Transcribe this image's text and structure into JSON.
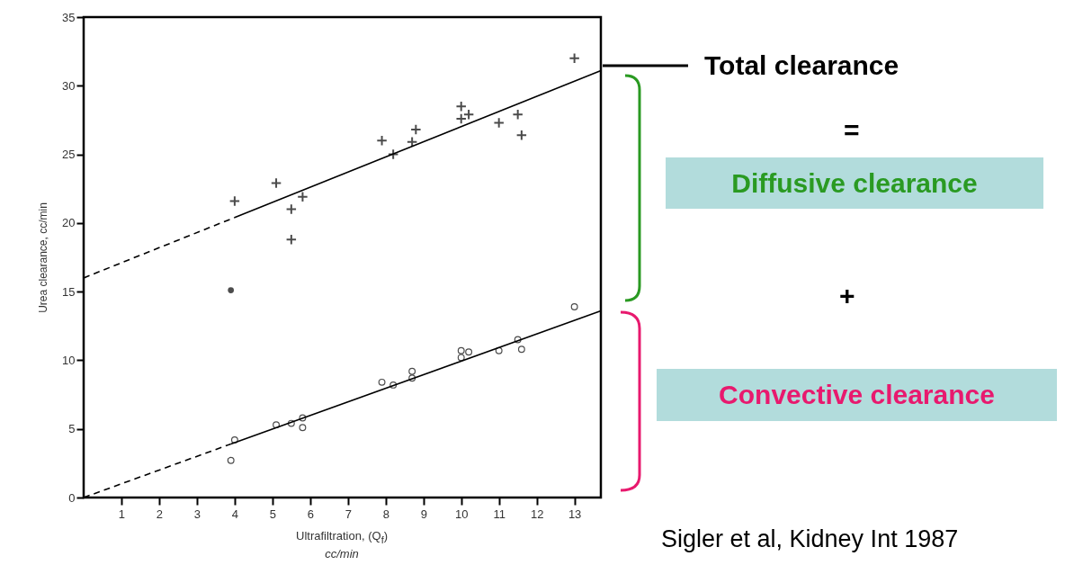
{
  "chart_data": {
    "type": "scatter",
    "xlabel": "Ultrafiltration, (Q$_{f}$)\ncc/min",
    "ylabel": "Urea clearance, cc/min",
    "xlim": [
      0,
      13.7
    ],
    "xticks": [
      1,
      2,
      3,
      4,
      5,
      6,
      7,
      8,
      9,
      10,
      11,
      12,
      13
    ],
    "ylim": [
      0,
      35
    ],
    "yticks": [
      0,
      5,
      10,
      15,
      20,
      25,
      30,
      35
    ],
    "grid": false,
    "series": [
      {
        "marker": "cross",
        "color": "#000000",
        "x": [
          4.0,
          5.1,
          5.5,
          5.5,
          5.8,
          7.9,
          8.2,
          8.7,
          8.8,
          10.0,
          10.0,
          10.2,
          11.0,
          11.5,
          11.6,
          13.0
        ],
        "values": [
          21.6,
          22.9,
          21.0,
          18.8,
          21.9,
          26.0,
          25.0,
          25.9,
          26.8,
          27.6,
          28.5,
          27.9,
          27.3,
          27.9,
          26.4,
          32.0
        ]
      },
      {
        "marker": "circle",
        "color": "#000000",
        "x": [
          3.9
        ],
        "values": [
          15.1
        ]
      },
      {
        "marker": "circle",
        "color": "#000000",
        "x": [
          4.0,
          3.9,
          5.1,
          5.5,
          5.8,
          5.8,
          7.9,
          8.2,
          8.7,
          8.7,
          10.0,
          10.0,
          10.2,
          11.0,
          11.5,
          11.6,
          13.0
        ],
        "values": [
          4.2,
          2.7,
          5.3,
          5.4,
          5.8,
          5.1,
          8.4,
          8.2,
          9.2,
          8.7,
          10.2,
          10.7,
          10.6,
          10.7,
          11.5,
          10.8,
          13.9
        ]
      },
      {
        "type": "line",
        "line_style": "dashed",
        "color": "#000000",
        "x": [
          0,
          4
        ],
        "values": [
          16,
          20.4
        ]
      },
      {
        "type": "line",
        "line_style": "solid",
        "color": "#000000",
        "x": [
          4,
          13.7
        ],
        "values": [
          20.4,
          31.1
        ]
      },
      {
        "type": "line",
        "line_style": "dashed",
        "color": "#000000",
        "x": [
          0,
          3.9
        ],
        "values": [
          0,
          3.9
        ]
      },
      {
        "type": "line",
        "line_style": "solid",
        "color": "#000000",
        "x": [
          3.9,
          13.7
        ],
        "values": [
          3.9,
          13.6
        ]
      }
    ],
    "annotations": [
      "Total clearance",
      "=",
      "Diffusive clearance",
      "+",
      "Convective clearance",
      "Sigler et al, Kidney Int 1987"
    ]
  }
}
